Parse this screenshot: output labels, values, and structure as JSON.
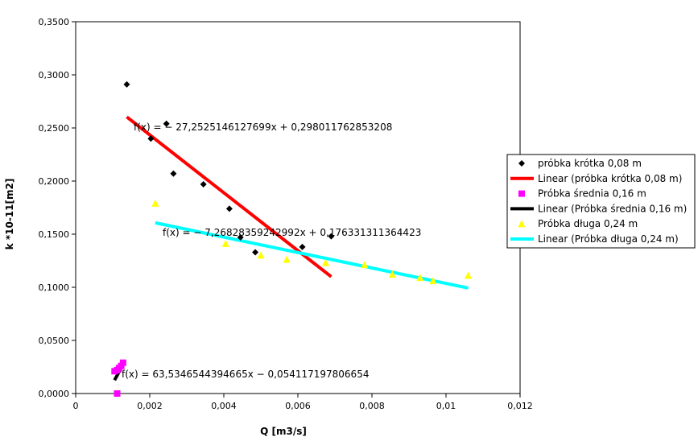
{
  "chart_data": {
    "type": "scatter",
    "title": "",
    "xlabel": "Q [m3/s]",
    "ylabel": "k *10-11[m2]",
    "xlim": [
      0,
      0.012
    ],
    "ylim": [
      0,
      0.35
    ],
    "x_ticks": [
      0,
      0.002,
      0.004,
      0.006,
      0.008,
      0.01,
      0.012
    ],
    "x_tick_labels": [
      "0",
      "0,002",
      "0,004",
      "0,006",
      "0,008",
      "0,01",
      "0,012"
    ],
    "y_ticks": [
      0,
      0.05,
      0.1,
      0.15,
      0.2,
      0.25,
      0.3,
      0.35
    ],
    "y_tick_labels": [
      "0,0000",
      "0,0500",
      "0,1000",
      "0,1500",
      "0,2000",
      "0,2500",
      "0,3000",
      "0,3500"
    ],
    "grid": false,
    "legend_position": "right",
    "series": [
      {
        "name": "próbka krótka 0,08 m",
        "marker": "diamond",
        "color": "#000000",
        "x": [
          0.00138,
          0.00203,
          0.00245,
          0.00264,
          0.00345,
          0.00415,
          0.00445,
          0.00485,
          0.00612,
          0.0069
        ],
        "y": [
          0.291,
          0.24,
          0.254,
          0.207,
          0.197,
          0.174,
          0.147,
          0.133,
          0.138,
          0.148
        ]
      },
      {
        "name": "Próbka średnia 0,16 m",
        "marker": "square",
        "color": "#ff00ff",
        "x": [
          0.00105,
          0.00112,
          0.00117,
          0.00123,
          0.00128,
          0.00112
        ],
        "y": [
          0.021,
          0.022,
          0.024,
          0.026,
          0.029,
          0.0
        ]
      },
      {
        "name": "Próbka długa 0,24 m",
        "marker": "triangle",
        "color": "#ffff00",
        "x": [
          0.00215,
          0.00405,
          0.005,
          0.0057,
          0.00675,
          0.0078,
          0.00855,
          0.0093,
          0.00965,
          0.0106
        ],
        "y": [
          0.179,
          0.141,
          0.13,
          0.126,
          0.123,
          0.121,
          0.112,
          0.109,
          0.106,
          0.111
        ]
      }
    ],
    "trendlines": [
      {
        "name": "Linear (próbka krótka 0,08 m)",
        "color": "#ff0000",
        "slope": -27.2525146127699,
        "intercept": 0.298011762853208,
        "x_range": [
          0.00138,
          0.0069
        ],
        "equation": "f(x) = − 27,2525146127699x + 0,298011762853208"
      },
      {
        "name": "Linear (Próbka średnia 0,16 m)",
        "color": "#000000",
        "slope": 63.5346544394665,
        "intercept": -0.054117197806654,
        "x_range": [
          0.00105,
          0.00128
        ],
        "equation": "f(x) = 63,5346544394665x − 0,054117197806654"
      },
      {
        "name": "Linear (Próbka długa 0,24 m)",
        "color": "#00ffff",
        "slope": -7.26828359242992,
        "intercept": 0.176331311364423,
        "x_range": [
          0.00215,
          0.0106
        ],
        "equation": "f(x) = − 7,26828359242992x + 0,176331311364423"
      }
    ],
    "legend": [
      "próbka krótka 0,08 m",
      "Linear (próbka krótka 0,08 m)",
      "Próbka średnia 0,16 m",
      "Linear (Próbka średnia 0,16 m)",
      "Próbka długa 0,24 m",
      "Linear (Próbka długa 0,24 m)"
    ]
  }
}
